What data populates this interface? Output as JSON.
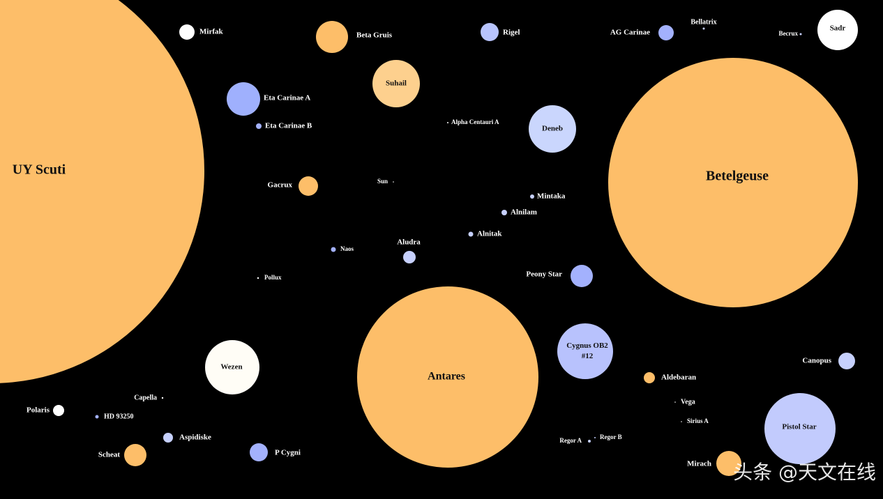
{
  "nodes": [
    {
      "label": "UY Scuti"
    },
    {
      "label": "Mirfak"
    },
    {
      "label": "Beta Gruis"
    },
    {
      "label": "Rigel"
    },
    {
      "label": "AG Carinae"
    },
    {
      "label": "Bellatrix"
    },
    {
      "label": "Becrux"
    },
    {
      "label": "Sadr"
    },
    {
      "label": "Eta Carinae A"
    },
    {
      "label": "Eta Carinae B"
    },
    {
      "label": "Suhail"
    },
    {
      "label": "Alpha Centauri A"
    },
    {
      "label": "Deneb"
    },
    {
      "label": "Betelgeuse"
    },
    {
      "label": "Gacrux"
    },
    {
      "label": "Sun"
    },
    {
      "label": "Mintaka"
    },
    {
      "label": "Alnilam"
    },
    {
      "label": "Alnitak"
    },
    {
      "label": "Naos"
    },
    {
      "label": "Aludra"
    },
    {
      "label": "Pollux"
    },
    {
      "label": "Peony Star"
    },
    {
      "label": "Antares"
    },
    {
      "label": "Cygnus OB2 #12"
    },
    {
      "label": "Wezen"
    },
    {
      "label": "Canopus"
    },
    {
      "label": "Aldebaran"
    },
    {
      "label": "Capella"
    },
    {
      "label": "Vega"
    },
    {
      "label": "Polaris"
    },
    {
      "label": "HD 93250"
    },
    {
      "label": "Sirius A"
    },
    {
      "label": "Aspidiske"
    },
    {
      "label": "Regor A"
    },
    {
      "label": "Regor B"
    },
    {
      "label": "Pistol Star"
    },
    {
      "label": "Scheat"
    },
    {
      "label": "P Cygni"
    },
    {
      "label": "Mirach"
    }
  ],
  "watermark": "头条 @天文在线"
}
